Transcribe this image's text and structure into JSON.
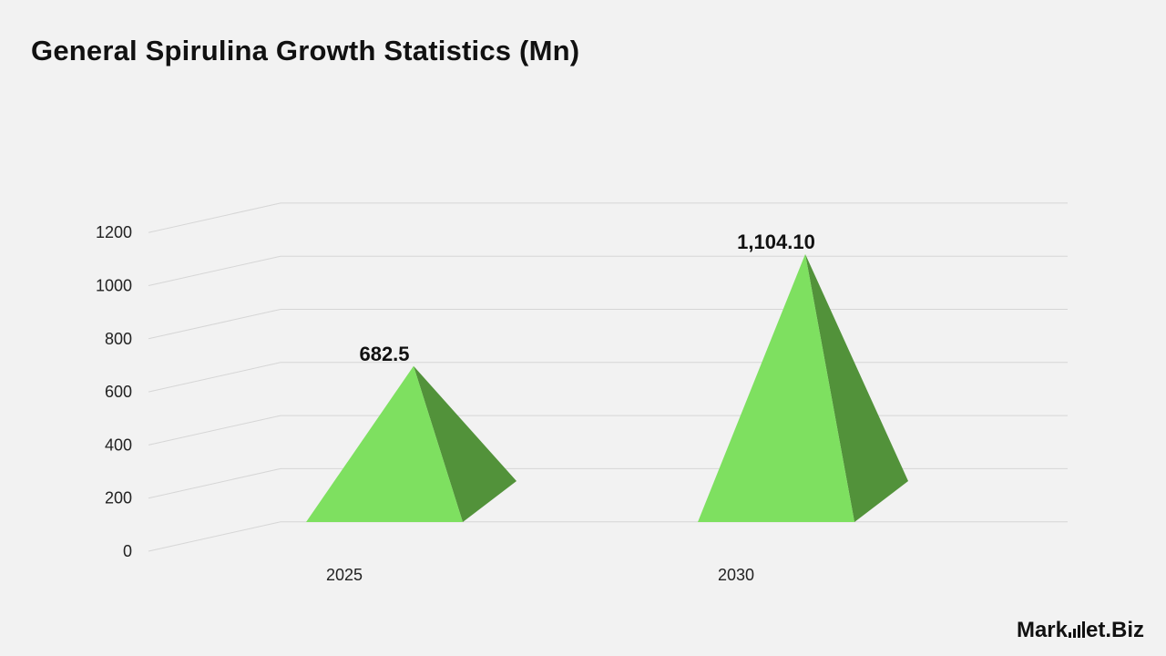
{
  "header": {
    "title": "General Spirulina Growth Statistics (Mn)"
  },
  "chart_data": {
    "type": "bar",
    "categories": [
      "2025",
      "2030"
    ],
    "values": [
      682.5,
      1104.1
    ],
    "value_labels": [
      "682.5",
      "1,104.10"
    ],
    "ylim": [
      0,
      1200
    ],
    "yticks": [
      0,
      200,
      400,
      600,
      800,
      1000,
      1200
    ],
    "grid": true,
    "colors": {
      "front": "#7ee060",
      "side": "#52923a",
      "grid": "#d6d6d6"
    }
  },
  "brand": {
    "logo_text_start": "Mark",
    "logo_text_mid": "et",
    "logo_text_end": ".Biz"
  }
}
